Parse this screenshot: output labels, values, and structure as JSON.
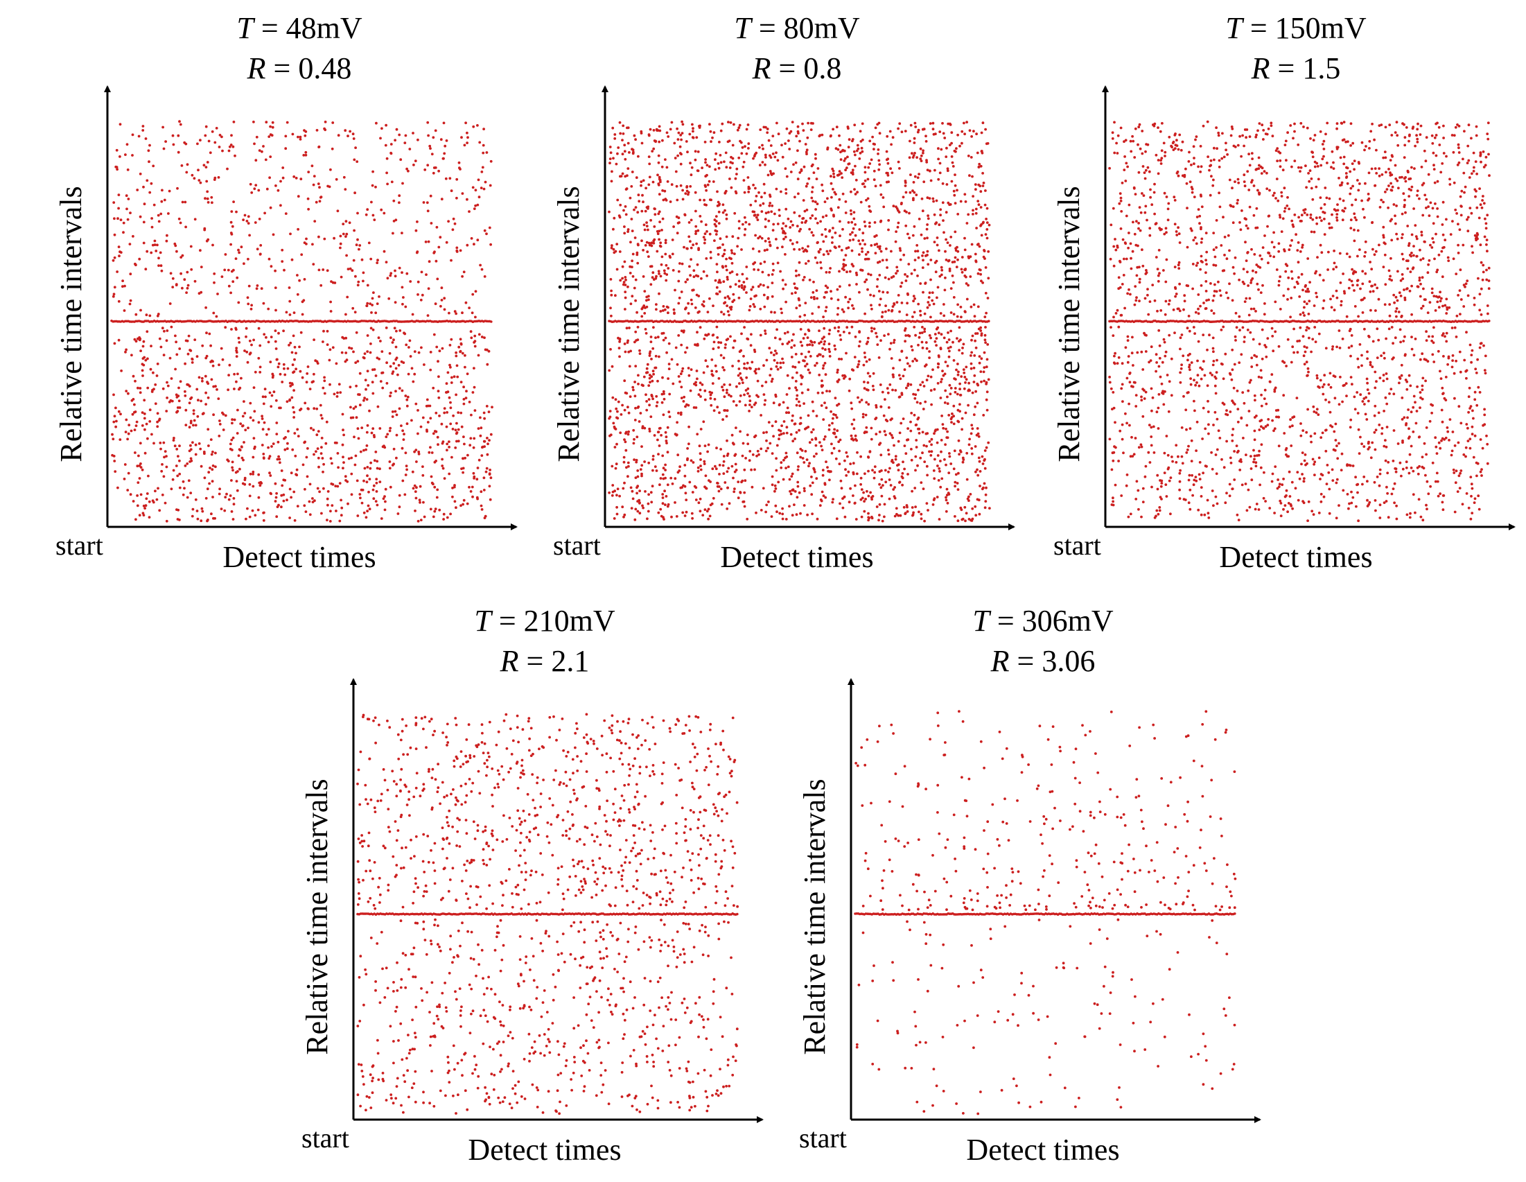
{
  "figure": {
    "point_color": "#cc1f1f",
    "axis_color": "#000000"
  },
  "chart_data": [
    {
      "type": "scatter",
      "title_line1": {
        "var": "T",
        "eq": " = ",
        "value": "48mV"
      },
      "title_line2": {
        "var": "R",
        "eq": " = ",
        "value": "0.48"
      },
      "xlabel": "Detect times",
      "ylabel": "Relative time intervals",
      "origin_label": "start",
      "baseline_level": 0.5,
      "density_above": 0.55,
      "density_below": 1.0,
      "point_count_estimate": 1700,
      "grid": false,
      "legend": "none"
    },
    {
      "type": "scatter",
      "title_line1": {
        "var": "T",
        "eq": " = ",
        "value": "80mV"
      },
      "title_line2": {
        "var": "R",
        "eq": " = ",
        "value": "0.8"
      },
      "xlabel": "Detect times",
      "ylabel": "Relative time intervals",
      "origin_label": "start",
      "baseline_level": 0.5,
      "density_above": 1.0,
      "density_below": 1.0,
      "point_count_estimate": 3000,
      "grid": false,
      "legend": "none"
    },
    {
      "type": "scatter",
      "title_line1": {
        "var": "T",
        "eq": " = ",
        "value": "150mV"
      },
      "title_line2": {
        "var": "R",
        "eq": " = ",
        "value": "1.5"
      },
      "xlabel": "Detect times",
      "ylabel": "Relative time intervals",
      "origin_label": "start",
      "baseline_level": 0.5,
      "density_above": 1.0,
      "density_below": 0.85,
      "point_count_estimate": 2200,
      "grid": false,
      "legend": "none"
    },
    {
      "type": "scatter",
      "title_line1": {
        "var": "T",
        "eq": " = ",
        "value": "210mV"
      },
      "title_line2": {
        "var": "R",
        "eq": " = ",
        "value": "2.1"
      },
      "xlabel": "Detect times",
      "ylabel": "Relative time intervals",
      "origin_label": "start",
      "baseline_level": 0.5,
      "density_above": 1.0,
      "density_below": 0.75,
      "point_count_estimate": 1400,
      "grid": false,
      "legend": "none"
    },
    {
      "type": "scatter",
      "title_line1": {
        "var": "T",
        "eq": " = ",
        "value": "306mV"
      },
      "title_line2": {
        "var": "R",
        "eq": " = ",
        "value": "3.06"
      },
      "xlabel": "Detect times",
      "ylabel": "Relative time intervals",
      "origin_label": "start",
      "baseline_level": 0.5,
      "density_above": 1.0,
      "density_below": 0.45,
      "point_count_estimate": 450,
      "grid": false,
      "legend": "none"
    }
  ]
}
